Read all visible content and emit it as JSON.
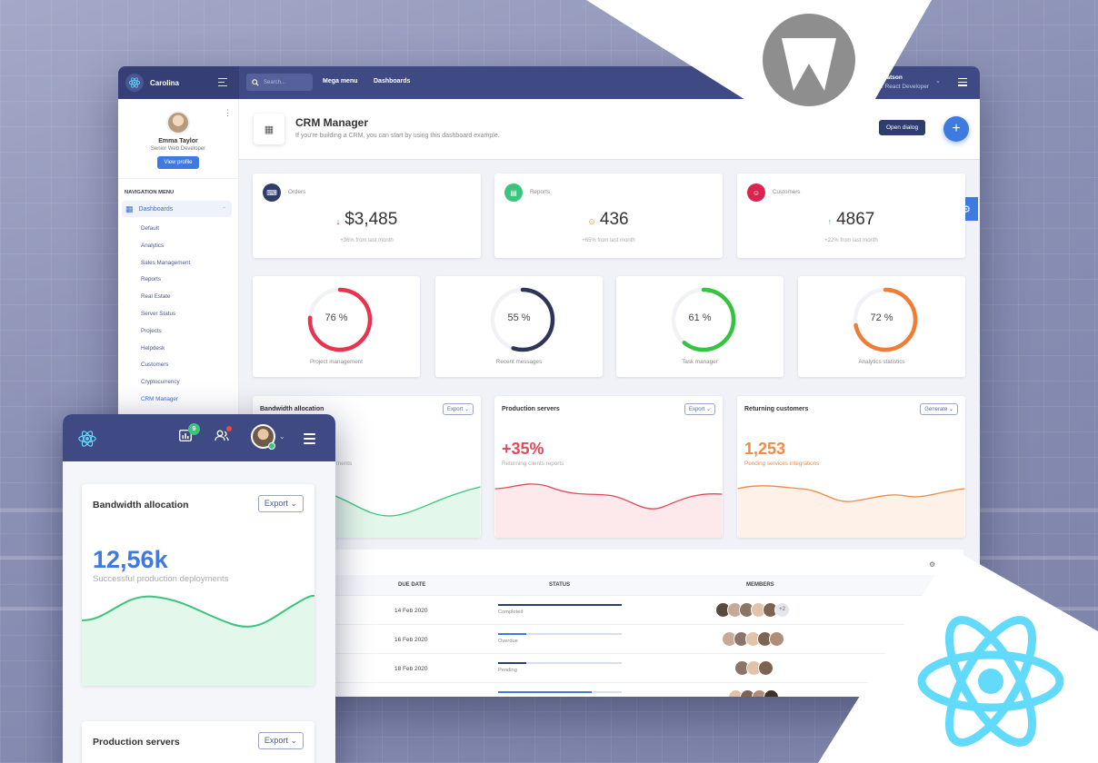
{
  "desktop": {
    "brand": "Carolina",
    "search_placeholder": "Search...",
    "topnav": [
      "Mega menu",
      "Dashboards"
    ],
    "user": {
      "name": "Watson",
      "role": "r React Developer"
    },
    "sidebar": {
      "profile_name": "Emma Taylor",
      "profile_role": "Senior Web Developer",
      "view_profile": "View profile",
      "nav_heading": "NAVIGATION MENU",
      "main_item": "Dashboards",
      "items": [
        "Default",
        "Analytics",
        "Sales Management",
        "Reports",
        "Real Estate",
        "Server Status",
        "Projects",
        "Helpdesk",
        "Customers",
        "Cryptocurrency",
        "CRM Manager"
      ]
    },
    "page": {
      "title": "CRM Manager",
      "subtitle": "If you're building a CRM, you can start by using this dashboard example.",
      "open_dialog": "Open dialog"
    },
    "kpis": [
      {
        "label": "Orders",
        "value": "$3,485",
        "arrow": "↓",
        "arrow_color": "#d92550",
        "sub": "+36% from last month",
        "icon_bg": "#2f3d6e",
        "icon": "keyboard-icon"
      },
      {
        "label": "Reports",
        "value": "436",
        "arrow": "⊙",
        "arrow_color": "#f7a24b",
        "sub": "+65% from last month",
        "icon_bg": "#3ac47d",
        "icon": "file-icon"
      },
      {
        "label": "Customers",
        "value": "4867",
        "arrow": "↑",
        "arrow_color": "#3ac47d",
        "sub": "+22% from last month",
        "icon_bg": "#d92550",
        "icon": "user-icon"
      }
    ],
    "rings": [
      {
        "label": "Project management",
        "value": 76,
        "text": "76 %",
        "color": "#e8344e"
      },
      {
        "label": "Recent messages",
        "value": 55,
        "text": "55 %",
        "color": "#2f3558"
      },
      {
        "label": "Task manager",
        "value": 61,
        "text": "61 %",
        "color": "#35c43e"
      },
      {
        "label": "Analytics statistics",
        "value": 72,
        "text": "72 %",
        "color": "#ef7d35"
      }
    ],
    "charts": [
      {
        "title": "Bandwidth allocation",
        "button": "Export",
        "big": "",
        "sub": "ments",
        "color": "#3ac47d",
        "fill": "#e3f7ea"
      },
      {
        "title": "Production servers",
        "button": "Export",
        "big": "+35%",
        "sub": "Returning clients reports",
        "color": "#e5485b",
        "fill": "#fde8eb"
      },
      {
        "title": "Returning customers",
        "button": "Generate",
        "big": "1,253",
        "sub": "Pending services integrations",
        "color": "#ef8b45",
        "fill": "#fdf1e8"
      }
    ],
    "table": {
      "title_fragment": "t",
      "headers": [
        "DUE DATE",
        "STATUS",
        "MEMBERS"
      ],
      "rows": [
        {
          "date": "14 Feb 2020",
          "status": "Completed",
          "progress": 1.0,
          "bar_color": "#2f3d6e",
          "members": 5,
          "extra": "+2"
        },
        {
          "date": "16 Feb 2020",
          "status": "Overdue",
          "progress": 0.23,
          "bar_color": "#3f7ae0",
          "members": 5,
          "extra": ""
        },
        {
          "date": "18 Feb 2020",
          "status": "Pending",
          "progress": 0.23,
          "bar_color": "#2f3d6e",
          "members": 3,
          "extra": ""
        },
        {
          "date": "",
          "status": "",
          "progress": 0.76,
          "bar_color": "#3f7ae0",
          "members": 4,
          "extra": ""
        }
      ]
    }
  },
  "mobile": {
    "badge": "9",
    "cards": [
      {
        "title": "Bandwidth allocation",
        "button": "Export",
        "big": "12,56k",
        "sub": "Successful production deployments"
      },
      {
        "title": "Production servers",
        "button": "Export"
      }
    ]
  },
  "colors": {
    "navy": "#3f4a84",
    "accent": "#3f7ae0",
    "react": "#61dafb"
  }
}
